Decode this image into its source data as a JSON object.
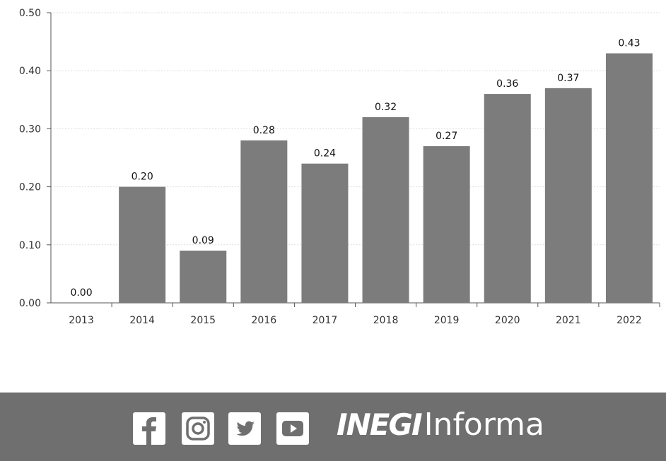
{
  "chart_data": {
    "type": "bar",
    "title": "",
    "categories": [
      "2013",
      "2014",
      "2015",
      "2016",
      "2017",
      "2018",
      "2019",
      "2020",
      "2021",
      "2022"
    ],
    "values": [
      0.0,
      0.2,
      0.09,
      0.28,
      0.24,
      0.32,
      0.27,
      0.36,
      0.37,
      0.43
    ],
    "data_labels": [
      "0.00",
      "0.20",
      "0.09",
      "0.28",
      "0.24",
      "0.32",
      "0.27",
      "0.36",
      "0.37",
      "0.43"
    ],
    "y_ticks": [
      "0.00",
      "0.10",
      "0.20",
      "0.30",
      "0.40",
      "0.50"
    ],
    "ylim": [
      0,
      0.5
    ],
    "xlabel": "",
    "ylabel": "",
    "grid": true,
    "legend": "none",
    "colors": {
      "bar": "#7c7c7c",
      "grid": "#dddddd",
      "axis": "#555555"
    }
  },
  "footer": {
    "icons": [
      "facebook-icon",
      "instagram-icon",
      "twitter-icon",
      "youtube-icon"
    ],
    "brand_bold": "INEGI",
    "brand_light": "Informa",
    "background": "#6f6f6f"
  }
}
